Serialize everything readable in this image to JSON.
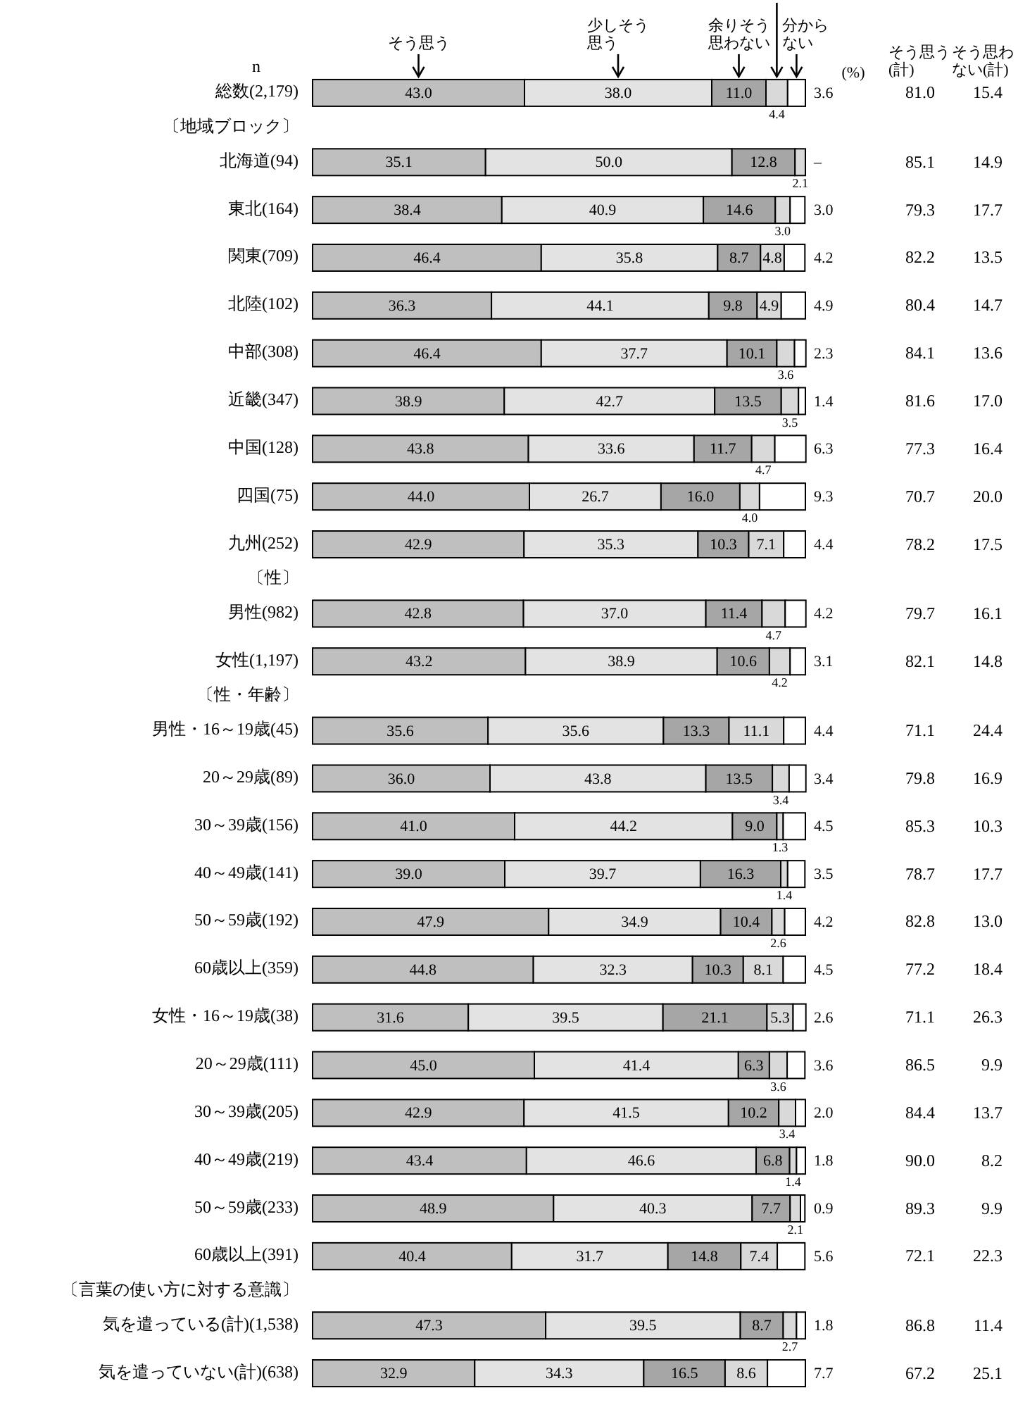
{
  "chart_data": {
    "type": "bar",
    "orientation": "horizontal",
    "stacked": true,
    "legend": "top",
    "xlim": [
      0,
      100
    ],
    "categories": [
      "総数(2,179)",
      "〔地域ブロック〕",
      "北海道(94)",
      "東北(164)",
      "関東(709)",
      "北陸(102)",
      "中部(308)",
      "近畿(347)",
      "中国(128)",
      "四国(75)",
      "九州(252)",
      "〔性〕",
      "男性(982)",
      "女性(1,197)",
      "〔性・年齢〕",
      "男性・16～19歳(45)",
      "20～29歳(89)",
      "30～39歳(156)",
      "40～49歳(141)",
      "50～59歳(192)",
      "60歳以上(359)",
      "女性・16～19歳(38)",
      "20～29歳(111)",
      "30～39歳(205)",
      "40～49歳(219)",
      "50～59歳(233)",
      "60歳以上(391)",
      "〔言葉の使い方に対する意識〕",
      "気を遣っている(計)(1,538)",
      "気を遣っていない(計)(638)"
    ],
    "series": [
      {
        "name": "そう思う",
        "color": "#bfbfbf",
        "values": [
          43.0,
          null,
          35.1,
          38.4,
          46.4,
          36.3,
          46.4,
          38.9,
          43.8,
          44.0,
          42.9,
          null,
          42.8,
          43.2,
          null,
          35.6,
          36.0,
          41.0,
          39.0,
          47.9,
          44.8,
          31.6,
          45.0,
          42.9,
          43.4,
          48.9,
          40.4,
          null,
          47.3,
          32.9
        ],
        "value_labels": [
          "43.0",
          null,
          "35.1",
          "38.4",
          "46.4",
          "36.3",
          "46.4",
          "38.9",
          "43.8",
          "44.0",
          "42.9",
          null,
          "42.8",
          "43.2",
          null,
          "35.6",
          "36.0",
          "41.0",
          "39.0",
          "47.9",
          "44.8",
          "31.6",
          "45.0",
          "42.9",
          "43.4",
          "48.9",
          "40.4",
          null,
          "47.3",
          "32.9"
        ]
      },
      {
        "name": "少しそう思う",
        "color": "#e3e3e3",
        "values": [
          38.0,
          null,
          50.0,
          40.9,
          35.8,
          44.1,
          37.7,
          42.7,
          33.6,
          26.7,
          35.3,
          null,
          37.0,
          38.9,
          null,
          35.6,
          43.8,
          44.2,
          39.7,
          34.9,
          32.3,
          39.5,
          41.4,
          41.5,
          46.6,
          40.3,
          31.7,
          null,
          39.5,
          34.3
        ],
        "value_labels": [
          "38.0",
          null,
          "50.0",
          "40.9",
          "35.8",
          "44.1",
          "37.7",
          "42.7",
          "33.6",
          "26.7",
          "35.3",
          null,
          "37.0",
          "38.9",
          null,
          "35.6",
          "43.8",
          "44.2",
          "39.7",
          "34.9",
          "32.3",
          "39.5",
          "41.4",
          "41.5",
          "46.6",
          "40.3",
          "31.7",
          null,
          "39.5",
          "34.3"
        ]
      },
      {
        "name": "余りそう思わない",
        "color": "#a6a6a6",
        "values": [
          11.0,
          null,
          12.8,
          14.6,
          8.7,
          9.8,
          10.1,
          13.5,
          11.7,
          16.0,
          10.3,
          null,
          11.4,
          10.6,
          null,
          13.3,
          13.5,
          9.0,
          16.3,
          10.4,
          10.3,
          21.1,
          6.3,
          10.2,
          6.8,
          7.7,
          14.8,
          null,
          8.7,
          16.5
        ],
        "value_labels": [
          "11.0",
          null,
          "12.8",
          "14.6",
          "8.7",
          "9.8",
          "10.1",
          "13.5",
          "11.7",
          "16.0",
          "10.3",
          null,
          "11.4",
          "10.6",
          null,
          "13.3",
          "13.5",
          "9.0",
          "16.3",
          "10.4",
          "10.3",
          "21.1",
          "6.3",
          "10.2",
          "6.8",
          "7.7",
          "14.8",
          null,
          "8.7",
          "16.5"
        ]
      },
      {
        "color": "#d9d9d9",
        "values": [
          4.4,
          null,
          2.1,
          3.0,
          4.8,
          4.9,
          3.6,
          3.5,
          4.7,
          4.0,
          7.1,
          null,
          4.7,
          4.2,
          null,
          11.1,
          3.4,
          1.3,
          1.4,
          2.6,
          8.1,
          5.3,
          3.6,
          3.4,
          1.4,
          2.1,
          7.4,
          null,
          2.7,
          8.6
        ],
        "value_labels": [
          "4.4",
          null,
          "2.1",
          "3.0",
          "4.8",
          "4.9",
          "3.6",
          "3.5",
          "4.7",
          "4.0",
          "7.1",
          null,
          "4.7",
          "4.2",
          null,
          "11.1",
          "3.4",
          "1.3",
          "1.4",
          "2.6",
          "8.1",
          "5.3",
          "3.6",
          "3.4",
          "1.4",
          "2.1",
          "7.4",
          null,
          "2.7",
          "8.6"
        ]
      },
      {
        "name": "分からない",
        "color": "#ffffff",
        "values": [
          3.6,
          null,
          0,
          3.0,
          4.2,
          4.9,
          2.3,
          1.4,
          6.3,
          9.3,
          4.4,
          null,
          4.2,
          3.1,
          null,
          4.4,
          3.4,
          4.5,
          3.5,
          4.2,
          4.5,
          2.6,
          3.6,
          2.0,
          1.8,
          0.9,
          5.6,
          null,
          1.8,
          7.7
        ],
        "value_labels": [
          "3.6",
          null,
          "–",
          "3.0",
          "4.2",
          "4.9",
          "2.3",
          "1.4",
          "6.3",
          "9.3",
          "4.4",
          null,
          "4.2",
          "3.1",
          null,
          "4.4",
          "3.4",
          "4.5",
          "3.5",
          "4.2",
          "4.5",
          "2.6",
          "3.6",
          "2.0",
          "1.8",
          "0.9",
          "5.6",
          null,
          "1.8",
          "7.7"
        ]
      }
    ],
    "annotations": [
      "n",
      "(%)",
      "そう思う(計)",
      "そう思わない(計)",
      "81.0",
      "85.1",
      "79.3",
      "82.2",
      "80.4",
      "84.1",
      "81.6",
      "77.3",
      "70.7",
      "78.2",
      "79.7",
      "82.1",
      "71.1",
      "79.8",
      "85.3",
      "78.7",
      "82.8",
      "77.2",
      "71.1",
      "86.5",
      "84.4",
      "90.0",
      "89.3",
      "72.1",
      "86.8",
      "67.2",
      "15.4",
      "14.9",
      "17.7",
      "13.5",
      "14.7",
      "13.6",
      "17.0",
      "16.4",
      "20.0",
      "17.5",
      "16.1",
      "14.8",
      "24.4",
      "16.9",
      "10.3",
      "17.7",
      "13.0",
      "18.4",
      "26.3",
      "9.9",
      "13.7",
      "8.2",
      "9.9",
      "22.3",
      "11.4",
      "25.1"
    ]
  }
}
